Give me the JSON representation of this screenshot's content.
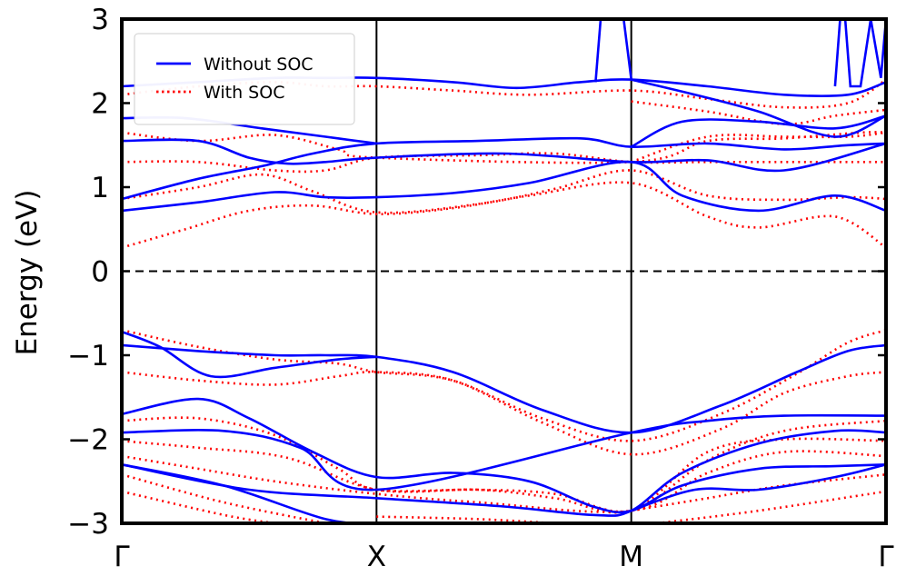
{
  "chart_data": {
    "type": "line",
    "title": "",
    "xlabel": "",
    "ylabel": "Energy (eV)",
    "ylim": [
      -3,
      3
    ],
    "xlim": [
      0,
      3
    ],
    "yticks": [
      -3,
      -2,
      -1,
      0,
      1,
      2,
      3
    ],
    "ytick_labels": [
      "−3",
      "−2",
      "−1",
      "0",
      "1",
      "2",
      "3"
    ],
    "kpoints": [
      {
        "label": "Γ",
        "x": 0
      },
      {
        "label": "X",
        "x": 1
      },
      {
        "label": "M",
        "x": 2
      },
      {
        "label": "Γ",
        "x": 3
      }
    ],
    "fermi_level": 0,
    "legend": {
      "placement": "top-left",
      "entries": [
        {
          "label": "Without SOC",
          "color": "#0000ff",
          "style": "solid"
        },
        {
          "label": "With SOC",
          "color": "#ff0000",
          "style": "dotted"
        }
      ]
    },
    "series": [
      {
        "name": "Without SOC",
        "color": "#0000ff",
        "style": "solid",
        "bands": [
          [
            [
              0,
              0.72
            ],
            [
              0.3,
              0.82
            ],
            [
              0.6,
              0.94
            ],
            [
              0.8,
              0.88
            ],
            [
              1,
              0.88
            ],
            [
              1.3,
              0.93
            ],
            [
              1.6,
              1.05
            ],
            [
              2,
              1.3
            ],
            [
              2.2,
              0.9
            ],
            [
              2.5,
              0.72
            ],
            [
              2.8,
              0.9
            ],
            [
              3,
              0.72
            ]
          ],
          [
            [
              0,
              0.86
            ],
            [
              0.3,
              1.1
            ],
            [
              0.55,
              1.25
            ],
            [
              0.75,
              1.4
            ],
            [
              1,
              1.52
            ],
            [
              1.4,
              1.55
            ],
            [
              1.8,
              1.58
            ],
            [
              2,
              1.48
            ],
            [
              2.3,
              1.52
            ],
            [
              2.6,
              1.45
            ],
            [
              2.85,
              1.5
            ],
            [
              3,
              1.52
            ]
          ],
          [
            [
              0,
              1.55
            ],
            [
              0.3,
              1.55
            ],
            [
              0.5,
              1.35
            ],
            [
              0.65,
              1.28
            ],
            [
              0.8,
              1.3
            ],
            [
              1,
              1.35
            ],
            [
              1.5,
              1.4
            ],
            [
              2,
              1.3
            ],
            [
              2.3,
              1.32
            ],
            [
              2.6,
              1.2
            ],
            [
              3,
              1.52
            ]
          ],
          [
            [
              0,
              1.82
            ],
            [
              0.25,
              1.82
            ],
            [
              0.55,
              1.7
            ],
            [
              0.8,
              1.6
            ],
            [
              1,
              1.52
            ]
          ],
          [
            [
              0,
              2.2
            ],
            [
              0.3,
              2.25
            ],
            [
              0.6,
              2.3
            ],
            [
              0.8,
              2.3
            ],
            [
              1,
              2.3
            ],
            [
              1.3,
              2.25
            ],
            [
              1.55,
              2.18
            ],
            [
              1.8,
              2.25
            ],
            [
              2,
              2.28
            ],
            [
              2.3,
              2.2
            ],
            [
              2.6,
              2.1
            ],
            [
              2.85,
              2.1
            ],
            [
              3,
              2.25
            ]
          ],
          [
            [
              2,
              2.28
            ],
            [
              2.25,
              2.1
            ],
            [
              2.5,
              1.9
            ],
            [
              2.8,
              1.6
            ],
            [
              3,
              1.85
            ]
          ],
          [
            [
              2,
              1.48
            ],
            [
              2.2,
              1.78
            ],
            [
              2.5,
              1.78
            ],
            [
              2.8,
              1.7
            ],
            [
              3,
              1.85
            ]
          ],
          [
            [
              0,
              -0.88
            ],
            [
              0.3,
              -0.95
            ],
            [
              0.6,
              -1.0
            ],
            [
              0.8,
              -1.0
            ],
            [
              1,
              -1.02
            ],
            [
              1.3,
              -1.2
            ],
            [
              1.65,
              -1.65
            ],
            [
              2,
              -1.92
            ],
            [
              2.35,
              -1.6
            ],
            [
              2.65,
              -1.2
            ],
            [
              2.85,
              -0.95
            ],
            [
              3,
              -0.88
            ]
          ],
          [
            [
              0,
              -0.72
            ],
            [
              0.15,
              -0.9
            ],
            [
              0.35,
              -1.25
            ],
            [
              0.6,
              -1.15
            ],
            [
              0.85,
              -1.05
            ],
            [
              1,
              -1.02
            ]
          ],
          [
            [
              0,
              -1.7
            ],
            [
              0.3,
              -1.52
            ],
            [
              0.5,
              -1.75
            ],
            [
              0.75,
              -2.15
            ],
            [
              1,
              -2.45
            ],
            [
              1.3,
              -2.4
            ],
            [
              1.6,
              -2.5
            ],
            [
              1.85,
              -2.8
            ],
            [
              2,
              -2.85
            ],
            [
              2.2,
              -2.55
            ],
            [
              2.5,
              -2.35
            ],
            [
              2.8,
              -2.32
            ],
            [
              3,
              -2.3
            ]
          ],
          [
            [
              0,
              -1.92
            ],
            [
              0.4,
              -1.9
            ],
            [
              0.7,
              -2.1
            ],
            [
              1,
              -2.6
            ],
            [
              2,
              -1.92
            ],
            [
              2.3,
              -1.78
            ],
            [
              2.6,
              -1.72
            ],
            [
              3,
              -1.72
            ]
          ],
          [
            [
              0,
              -2.3
            ],
            [
              0.5,
              -2.6
            ],
            [
              1,
              -2.7
            ],
            [
              1.5,
              -2.8
            ],
            [
              1.85,
              -2.9
            ],
            [
              2,
              -2.85
            ],
            [
              2.2,
              -2.4
            ],
            [
              2.5,
              -2.05
            ],
            [
              2.8,
              -1.9
            ],
            [
              3,
              -1.92
            ]
          ],
          [
            [
              0,
              -2.3
            ],
            [
              0.4,
              -2.55
            ],
            [
              0.8,
              -2.95
            ],
            [
              1,
              -3.0
            ]
          ],
          [
            [
              2,
              -2.85
            ],
            [
              2.25,
              -2.6
            ],
            [
              2.5,
              -2.6
            ],
            [
              2.8,
              -2.45
            ],
            [
              3,
              -2.3
            ]
          ]
        ]
      },
      {
        "name": "With SOC",
        "color": "#ff0000",
        "style": "dotted",
        "bands": [
          [
            [
              0,
              0.28
            ],
            [
              0.25,
              0.5
            ],
            [
              0.5,
              0.72
            ],
            [
              0.75,
              0.78
            ],
            [
              1,
              0.68
            ],
            [
              1.3,
              0.75
            ],
            [
              1.6,
              0.9
            ],
            [
              2,
              1.05
            ],
            [
              2.3,
              0.65
            ],
            [
              2.5,
              0.52
            ],
            [
              2.8,
              0.65
            ],
            [
              3,
              0.28
            ]
          ],
          [
            [
              0,
              0.86
            ],
            [
              0.3,
              1.0
            ],
            [
              0.55,
              1.15
            ],
            [
              0.75,
              0.95
            ],
            [
              1,
              0.7
            ],
            [
              1.4,
              0.8
            ],
            [
              1.7,
              0.98
            ],
            [
              2,
              1.2
            ],
            [
              2.3,
              0.9
            ],
            [
              2.6,
              0.85
            ],
            [
              2.85,
              0.88
            ],
            [
              3,
              0.86
            ]
          ],
          [
            [
              0,
              1.3
            ],
            [
              0.3,
              1.3
            ],
            [
              0.6,
              1.2
            ],
            [
              0.8,
              1.2
            ],
            [
              1,
              1.35
            ],
            [
              1.4,
              1.38
            ],
            [
              1.7,
              1.4
            ],
            [
              2,
              1.3
            ],
            [
              2.3,
              1.3
            ],
            [
              2.6,
              1.3
            ],
            [
              3,
              1.3
            ]
          ],
          [
            [
              0,
              1.65
            ],
            [
              0.3,
              1.55
            ],
            [
              0.6,
              1.62
            ],
            [
              0.85,
              1.45
            ],
            [
              1,
              1.35
            ],
            [
              2,
              1.3
            ],
            [
              2.3,
              1.55
            ],
            [
              2.6,
              1.58
            ],
            [
              2.9,
              1.65
            ],
            [
              3,
              1.65
            ]
          ],
          [
            [
              0,
              2.1
            ],
            [
              0.3,
              2.2
            ],
            [
              0.6,
              2.25
            ],
            [
              0.8,
              2.2
            ],
            [
              1,
              2.2
            ],
            [
              1.3,
              2.15
            ],
            [
              1.6,
              2.1
            ],
            [
              2,
              2.15
            ],
            [
              2.3,
              2.05
            ],
            [
              2.6,
              1.95
            ],
            [
              2.85,
              2.0
            ],
            [
              3,
              2.28
            ]
          ],
          [
            [
              2,
              2.02
            ],
            [
              2.3,
              1.9
            ],
            [
              2.6,
              1.75
            ],
            [
              2.8,
              1.85
            ],
            [
              3,
              1.92
            ]
          ],
          [
            [
              2,
              1.3
            ],
            [
              2.3,
              1.6
            ],
            [
              2.6,
              1.6
            ],
            [
              2.85,
              1.6
            ],
            [
              3,
              1.65
            ]
          ],
          [
            [
              0,
              -0.7
            ],
            [
              0.3,
              -0.9
            ],
            [
              0.6,
              -1.05
            ],
            [
              0.85,
              -1.1
            ],
            [
              1,
              -1.2
            ],
            [
              1.3,
              -1.3
            ],
            [
              1.65,
              -1.75
            ],
            [
              2,
              -2.02
            ],
            [
              2.35,
              -1.7
            ],
            [
              2.65,
              -1.22
            ],
            [
              2.85,
              -0.85
            ],
            [
              3,
              -0.7
            ]
          ],
          [
            [
              0,
              -1.2
            ],
            [
              0.3,
              -1.3
            ],
            [
              0.6,
              -1.35
            ],
            [
              0.85,
              -1.25
            ],
            [
              1,
              -1.2
            ],
            [
              1.3,
              -1.3
            ],
            [
              1.65,
              -1.8
            ],
            [
              2,
              -2.18
            ],
            [
              2.35,
              -1.88
            ],
            [
              2.6,
              -1.45
            ],
            [
              2.85,
              -1.25
            ],
            [
              3,
              -1.2
            ]
          ],
          [
            [
              0,
              -1.78
            ],
            [
              0.3,
              -1.75
            ],
            [
              0.6,
              -1.95
            ],
            [
              0.85,
              -2.35
            ],
            [
              1,
              -2.6
            ],
            [
              1.4,
              -2.6
            ],
            [
              1.7,
              -2.65
            ],
            [
              2,
              -2.85
            ],
            [
              2.3,
              -2.25
            ],
            [
              2.6,
              -1.9
            ],
            [
              3,
              -1.78
            ]
          ],
          [
            [
              0,
              -2.02
            ],
            [
              0.3,
              -2.1
            ],
            [
              0.65,
              -2.22
            ],
            [
              1,
              -2.6
            ],
            [
              1.4,
              -2.6
            ],
            [
              1.7,
              -2.7
            ],
            [
              2,
              -2.85
            ],
            [
              2.3,
              -2.15
            ],
            [
              2.6,
              -2.0
            ],
            [
              3,
              -2.02
            ]
          ],
          [
            [
              0,
              -2.2
            ],
            [
              0.3,
              -2.35
            ],
            [
              0.6,
              -2.5
            ],
            [
              1,
              -2.65
            ],
            [
              1.4,
              -2.75
            ],
            [
              2,
              -2.85
            ],
            [
              2.3,
              -2.4
            ],
            [
              2.6,
              -2.15
            ],
            [
              3,
              -2.2
            ]
          ],
          [
            [
              0,
              -2.42
            ],
            [
              0.4,
              -2.75
            ],
            [
              0.8,
              -3.0
            ]
          ],
          [
            [
              0,
              -2.62
            ],
            [
              0.4,
              -2.9
            ],
            [
              0.6,
              -3.0
            ]
          ],
          [
            [
              1,
              -2.92
            ],
            [
              1.4,
              -2.95
            ],
            [
              1.7,
              -3.0
            ]
          ],
          [
            [
              2,
              -2.85
            ],
            [
              2.3,
              -2.7
            ],
            [
              2.6,
              -2.55
            ],
            [
              3,
              -2.42
            ]
          ],
          [
            [
              2.1,
              -3.0
            ],
            [
              2.5,
              -2.85
            ],
            [
              3,
              -2.62
            ]
          ]
        ]
      }
    ],
    "spikes": {
      "Without SOC": [
        [
          [
            1.86,
            2.25
          ],
          [
            1.88,
            3.0
          ],
          [
            1.97,
            3.0
          ],
          [
            2.0,
            2.28
          ]
        ],
        [
          [
            2.8,
            2.2
          ],
          [
            2.82,
            3.0
          ],
          [
            2.84,
            3.0
          ],
          [
            2.86,
            2.2
          ],
          [
            2.9,
            2.2
          ],
          [
            2.94,
            3.0
          ],
          [
            2.98,
            2.3
          ],
          [
            3.0,
            3.0
          ]
        ]
      ]
    }
  }
}
